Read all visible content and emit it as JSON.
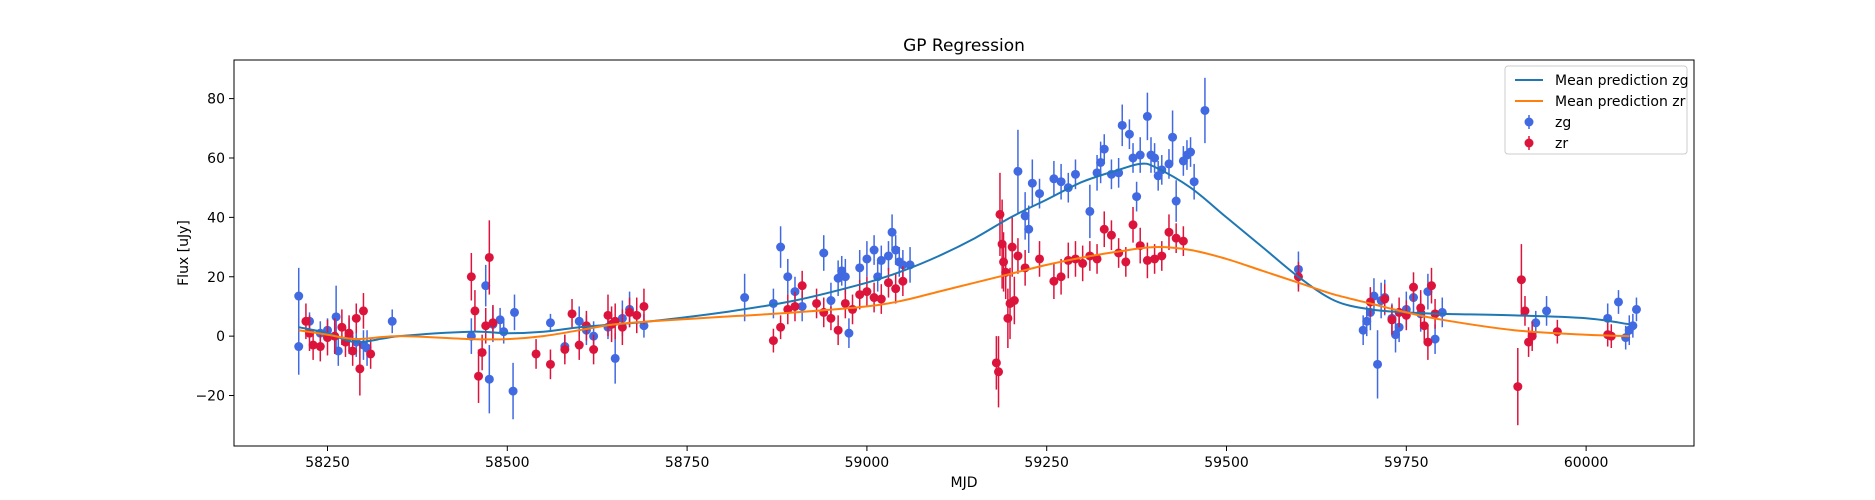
{
  "chart_data": {
    "type": "scatter",
    "title": "GP Regression",
    "xlabel": "MJD",
    "ylabel": "Flux [uJy]",
    "xlim": [
      58120,
      60150
    ],
    "ylim": [
      -37,
      93
    ],
    "xticks": [
      58250,
      58500,
      58750,
      59000,
      59250,
      59500,
      59750,
      60000
    ],
    "yticks": [
      -20,
      0,
      20,
      40,
      60,
      80
    ],
    "grid": false,
    "legend_position": "top-right",
    "colors": {
      "mean_zg": "#1f77b4",
      "mean_zr": "#ff7f0e",
      "points_zg": "#4169e1",
      "points_zr": "#dc143c"
    },
    "lines": [
      {
        "name": "Mean prediction zg",
        "color": "#1f77b4",
        "x": [
          58210,
          58250,
          58290,
          58350,
          58450,
          58500,
          58550,
          58600,
          58650,
          58700,
          58800,
          58900,
          59000,
          59050,
          59100,
          59150,
          59200,
          59250,
          59300,
          59350,
          59380,
          59400,
          59450,
          59500,
          59550,
          59600,
          59650,
          59700,
          59750,
          59800,
          59900,
          60000,
          60060
        ],
        "y": [
          3,
          1,
          -2,
          0,
          1.5,
          1,
          1.5,
          3,
          4,
          5,
          8,
          12,
          18,
          22,
          27,
          33,
          40,
          46,
          52,
          56,
          58,
          57,
          50,
          40,
          30,
          20,
          12,
          9,
          8,
          7.5,
          7,
          6,
          4
        ]
      },
      {
        "name": "Mean prediction zr",
        "color": "#ff7f0e",
        "x": [
          58210,
          58250,
          58290,
          58350,
          58450,
          58500,
          58550,
          58600,
          58650,
          58700,
          58800,
          58900,
          59000,
          59050,
          59100,
          59150,
          59200,
          59250,
          59300,
          59350,
          59400,
          59450,
          59500,
          59550,
          59600,
          59650,
          59700,
          59750,
          59800,
          59900,
          60000,
          60060
        ],
        "y": [
          2,
          0.5,
          -1,
          0,
          -1,
          -1,
          0,
          2,
          4,
          5,
          6.5,
          8,
          10,
          12,
          15,
          18,
          21,
          24,
          26.5,
          28.5,
          30,
          29,
          26,
          22,
          18,
          14,
          11,
          8,
          5.5,
          2,
          0.5,
          0
        ]
      }
    ],
    "series": [
      {
        "name": "zg",
        "color": "#4169e1",
        "points": [
          [
            58210,
            13.5,
            9.5
          ],
          [
            58210,
            -3.5,
            9.5
          ],
          [
            58225,
            5,
            3
          ],
          [
            58240,
            1,
            4
          ],
          [
            58250,
            2,
            4
          ],
          [
            58262,
            6.5,
            10.5
          ],
          [
            58265,
            -5,
            5
          ],
          [
            58280,
            0,
            6
          ],
          [
            58290,
            -2,
            5
          ],
          [
            58300,
            -3,
            5
          ],
          [
            58305,
            -4,
            6
          ],
          [
            58340,
            5,
            4
          ],
          [
            58450,
            0,
            6
          ],
          [
            58470,
            17,
            7
          ],
          [
            58475,
            -14.5,
            11.5
          ],
          [
            58480,
            4,
            6
          ],
          [
            58490,
            5.5,
            4
          ],
          [
            58495,
            1.5,
            4
          ],
          [
            58508,
            -18.5,
            9.5
          ],
          [
            58510,
            8,
            6
          ],
          [
            58560,
            4.5,
            3
          ],
          [
            58580,
            -3.5,
            4
          ],
          [
            58600,
            5,
            5
          ],
          [
            58610,
            2,
            5
          ],
          [
            58620,
            0,
            5
          ],
          [
            58640,
            3,
            4
          ],
          [
            58650,
            -7.5,
            8.5
          ],
          [
            58660,
            6,
            6
          ],
          [
            58670,
            9,
            6
          ],
          [
            58690,
            3.5,
            4
          ],
          [
            58830,
            13,
            8
          ],
          [
            58870,
            11,
            5
          ],
          [
            58880,
            30,
            7
          ],
          [
            58890,
            20,
            6
          ],
          [
            58900,
            15,
            5
          ],
          [
            58910,
            10,
            5
          ],
          [
            58940,
            28,
            6
          ],
          [
            58950,
            12,
            6
          ],
          [
            58960,
            19.5,
            6
          ],
          [
            58965,
            22,
            5
          ],
          [
            58970,
            20,
            6
          ],
          [
            58975,
            1,
            5
          ],
          [
            58990,
            23,
            6
          ],
          [
            59000,
            26,
            6
          ],
          [
            59010,
            29,
            5
          ],
          [
            59015,
            20,
            5
          ],
          [
            59020,
            25.5,
            5
          ],
          [
            59030,
            27,
            5
          ],
          [
            59035,
            35,
            6
          ],
          [
            59040,
            29,
            5
          ],
          [
            59045,
            25,
            5
          ],
          [
            59050,
            24,
            5
          ],
          [
            59060,
            24,
            6
          ],
          [
            59210,
            55.5,
            14
          ],
          [
            59220,
            40.5,
            8
          ],
          [
            59225,
            36,
            8
          ],
          [
            59230,
            51.5,
            8
          ],
          [
            59240,
            48,
            5
          ],
          [
            59260,
            53,
            6
          ],
          [
            59270,
            52,
            6
          ],
          [
            59280,
            50,
            5
          ],
          [
            59290,
            54.5,
            5
          ],
          [
            59310,
            42,
            9
          ],
          [
            59320,
            55,
            6
          ],
          [
            59325,
            58.5,
            7
          ],
          [
            59330,
            63,
            5
          ],
          [
            59340,
            54.5,
            5
          ],
          [
            59350,
            55,
            5
          ],
          [
            59355,
            71,
            7
          ],
          [
            59365,
            68,
            5
          ],
          [
            59370,
            60,
            5
          ],
          [
            59375,
            47,
            5
          ],
          [
            59380,
            61,
            6
          ],
          [
            59390,
            74,
            8
          ],
          [
            59395,
            61,
            6
          ],
          [
            59400,
            60,
            5
          ],
          [
            59405,
            54,
            5
          ],
          [
            59410,
            56,
            5
          ],
          [
            59420,
            58,
            5
          ],
          [
            59425,
            67,
            9
          ],
          [
            59430,
            45.5,
            7
          ],
          [
            59440,
            59,
            5
          ],
          [
            59445,
            61,
            5
          ],
          [
            59450,
            62,
            5
          ],
          [
            59455,
            52,
            6
          ],
          [
            59470,
            76,
            11
          ],
          [
            59600,
            22.5,
            6
          ],
          [
            59690,
            2,
            5
          ],
          [
            59695,
            5,
            5
          ],
          [
            59700,
            8,
            6
          ],
          [
            59705,
            13.5,
            6
          ],
          [
            59710,
            -9.5,
            11.5
          ],
          [
            59715,
            12,
            6
          ],
          [
            59720,
            13,
            6
          ],
          [
            59730,
            6,
            5
          ],
          [
            59735,
            0.5,
            6
          ],
          [
            59740,
            3,
            5
          ],
          [
            59750,
            9,
            6
          ],
          [
            59760,
            13,
            5
          ],
          [
            59770,
            7.5,
            6
          ],
          [
            59780,
            15,
            6
          ],
          [
            59790,
            -1,
            5
          ],
          [
            59800,
            8,
            5
          ],
          [
            59930,
            4.5,
            4
          ],
          [
            59945,
            8.5,
            5
          ],
          [
            60030,
            6,
            5
          ],
          [
            60045,
            11.5,
            4
          ],
          [
            60055,
            -0.5,
            4
          ],
          [
            60060,
            2,
            5
          ],
          [
            60065,
            3.5,
            4
          ],
          [
            60070,
            9,
            4
          ]
        ]
      },
      {
        "name": "zr",
        "color": "#dc143c",
        "points": [
          [
            58220,
            5,
            6
          ],
          [
            58225,
            1,
            6
          ],
          [
            58230,
            -3,
            5
          ],
          [
            58240,
            -3.5,
            5
          ],
          [
            58250,
            -0.5,
            6
          ],
          [
            58260,
            0,
            6
          ],
          [
            58270,
            3,
            6
          ],
          [
            58275,
            -2,
            5
          ],
          [
            58280,
            1,
            6
          ],
          [
            58285,
            -5,
            5
          ],
          [
            58290,
            6,
            5
          ],
          [
            58295,
            -11,
            9
          ],
          [
            58300,
            8.5,
            6
          ],
          [
            58310,
            -6,
            5
          ],
          [
            58450,
            20,
            8
          ],
          [
            58455,
            8.5,
            7
          ],
          [
            58460,
            -13.5,
            9
          ],
          [
            58465,
            -5.5,
            6
          ],
          [
            58470,
            3.5,
            6
          ],
          [
            58475,
            26.5,
            12.5
          ],
          [
            58480,
            4.5,
            6
          ],
          [
            58540,
            -6,
            5
          ],
          [
            58560,
            -9.5,
            5
          ],
          [
            58580,
            -4.5,
            5
          ],
          [
            58590,
            7.5,
            5
          ],
          [
            58600,
            -3,
            5
          ],
          [
            58610,
            3.5,
            5
          ],
          [
            58620,
            -4.5,
            5
          ],
          [
            58640,
            7,
            7
          ],
          [
            58645,
            4,
            6
          ],
          [
            58650,
            5,
            6
          ],
          [
            58660,
            3,
            6
          ],
          [
            58670,
            8,
            5
          ],
          [
            58680,
            7,
            6
          ],
          [
            58690,
            10,
            6
          ],
          [
            58870,
            -1.5,
            4
          ],
          [
            58880,
            3,
            4
          ],
          [
            58890,
            9,
            5
          ],
          [
            58900,
            10,
            5
          ],
          [
            58910,
            17,
            5
          ],
          [
            58930,
            11,
            5
          ],
          [
            58940,
            8,
            5
          ],
          [
            58950,
            6,
            4
          ],
          [
            58960,
            2,
            5
          ],
          [
            58970,
            11,
            5
          ],
          [
            58980,
            9,
            5
          ],
          [
            58990,
            14,
            5
          ],
          [
            59000,
            15,
            5
          ],
          [
            59010,
            13,
            5
          ],
          [
            59020,
            12.5,
            5
          ],
          [
            59030,
            18,
            5
          ],
          [
            59040,
            16,
            5
          ],
          [
            59050,
            18.5,
            5
          ],
          [
            59180,
            -9,
            9
          ],
          [
            59183,
            -12,
            12
          ],
          [
            59185,
            41,
            14
          ],
          [
            59188,
            31,
            15
          ],
          [
            59190,
            25,
            10
          ],
          [
            59193,
            21.5,
            9
          ],
          [
            59196,
            6,
            10
          ],
          [
            59199,
            11,
            12
          ],
          [
            59202,
            30,
            10
          ],
          [
            59205,
            12,
            8
          ],
          [
            59210,
            27,
            6
          ],
          [
            59220,
            23,
            6
          ],
          [
            59240,
            26,
            6
          ],
          [
            59260,
            18.5,
            6
          ],
          [
            59270,
            20,
            6
          ],
          [
            59280,
            25.5,
            6
          ],
          [
            59290,
            26,
            6
          ],
          [
            59300,
            24.5,
            6
          ],
          [
            59310,
            27,
            5
          ],
          [
            59320,
            26,
            5
          ],
          [
            59330,
            36,
            6
          ],
          [
            59340,
            34,
            5
          ],
          [
            59350,
            28,
            5
          ],
          [
            59360,
            25,
            5
          ],
          [
            59370,
            37.5,
            6
          ],
          [
            59380,
            30.5,
            6
          ],
          [
            59390,
            25.5,
            6
          ],
          [
            59400,
            26,
            5
          ],
          [
            59410,
            27,
            5
          ],
          [
            59420,
            35,
            6
          ],
          [
            59430,
            33,
            5
          ],
          [
            59440,
            32,
            5
          ],
          [
            59600,
            20,
            5
          ],
          [
            59700,
            11.5,
            5
          ],
          [
            59720,
            12.5,
            5
          ],
          [
            59730,
            5.5,
            5
          ],
          [
            59740,
            8,
            5
          ],
          [
            59750,
            7,
            5
          ],
          [
            59760,
            16.5,
            5
          ],
          [
            59770,
            9.5,
            6
          ],
          [
            59775,
            3.5,
            5
          ],
          [
            59780,
            -2,
            6
          ],
          [
            59785,
            17,
            6
          ],
          [
            59790,
            7.5,
            5
          ],
          [
            59905,
            -17,
            13
          ],
          [
            59910,
            19,
            12
          ],
          [
            59915,
            8.5,
            5
          ],
          [
            59920,
            -2,
            5
          ],
          [
            59925,
            0,
            5
          ],
          [
            59960,
            1.5,
            4
          ],
          [
            60030,
            0.5,
            4
          ],
          [
            60035,
            0,
            4
          ]
        ]
      }
    ]
  }
}
